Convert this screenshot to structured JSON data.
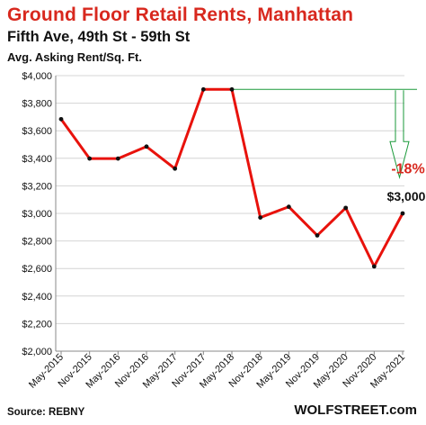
{
  "chart_data": {
    "type": "line",
    "title": "Ground  Floor Retail Rents, Manhattan",
    "subtitle": "Fifth Ave, 49th St - 59th St",
    "ylabel": "Avg. Asking Rent/Sq. Ft.",
    "xlabel": "",
    "categories": [
      "May-2015",
      "Nov-2015",
      "May-2016",
      "Nov-2016",
      "May-2017",
      "Nov-2017",
      "May-2018",
      "Nov-2018",
      "May-2019",
      "Nov-2019",
      "May-2020",
      "Nov-2020",
      "May-2021"
    ],
    "series": [
      {
        "values": [
          3684,
          3398,
          3398,
          3485,
          3325,
          3900,
          3900,
          2970,
          3048,
          2840,
          3040,
          2615,
          3000
        ]
      }
    ],
    "ylim": [
      2000,
      4000
    ],
    "yticks": [
      "$2,000",
      "$2,200",
      "$2,400",
      "$2,600",
      "$2,800",
      "$3,000",
      "$3,200",
      "$3,400",
      "$3,600",
      "$3,800",
      "$4,000"
    ],
    "ytick_values": [
      2000,
      2200,
      2400,
      2600,
      2800,
      3000,
      3200,
      3400,
      3600,
      3800,
      4000
    ],
    "grid": true,
    "line_color": "#e8120c",
    "marker_color": "#111111",
    "annotation_color": "#1a9a3a",
    "annotations": {
      "change_label": "-18%",
      "last_value_label": "$3,000",
      "reference_value": 3900
    },
    "source": "Source: REBNY",
    "brand": "WOLFSTREET.com"
  }
}
